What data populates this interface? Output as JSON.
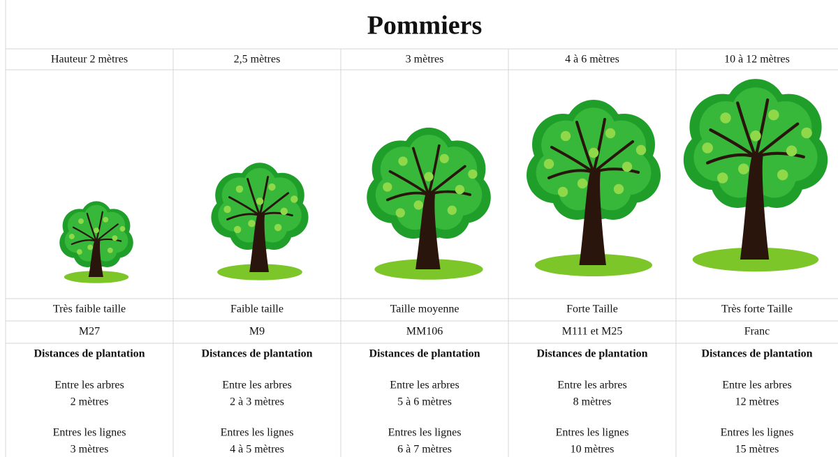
{
  "title": "Pommiers",
  "columns": [
    {
      "height": "Hauteur 2 mètres",
      "size": "Très faible taille",
      "rootstock": "M27",
      "distances_heading": "Distances de plantation",
      "between_trees_label": "Entre les arbres",
      "between_trees": "2 mètres",
      "between_rows_label": "Entres les lignes",
      "between_rows": "3 mètres"
    },
    {
      "height": "2,5 mètres",
      "size": "Faible taille",
      "rootstock": "M9",
      "distances_heading": "Distances de plantation",
      "between_trees_label": "Entre les arbres",
      "between_trees": "2 à 3 mètres",
      "between_rows_label": "Entres les lignes",
      "between_rows": "4 à 5 mètres"
    },
    {
      "height": "3 mètres",
      "size": "Taille moyenne",
      "rootstock": "MM106",
      "distances_heading": "Distances de plantation",
      "between_trees_label": "Entre les arbres",
      "between_trees": "5 à 6 mètres",
      "between_rows_label": "Entres les lignes",
      "between_rows": "6 à 7 mètres"
    },
    {
      "height": "4 à 6 mètres",
      "size": "Forte Taille",
      "rootstock": "M111 et M25",
      "distances_heading": "Distances de plantation",
      "between_trees_label": "Entre les arbres",
      "between_trees": "8 mètres",
      "between_rows_label": "Entres les lignes",
      "between_rows": "10 mètres"
    },
    {
      "height": "10 à 12 mètres",
      "size": "Très forte Taille",
      "rootstock": "Franc",
      "distances_heading": "Distances de plantation",
      "between_trees_label": "Entre les arbres",
      "between_trees": "12 mètres",
      "between_rows_label": "Entres les lignes",
      "between_rows": "15 mètres"
    }
  ]
}
